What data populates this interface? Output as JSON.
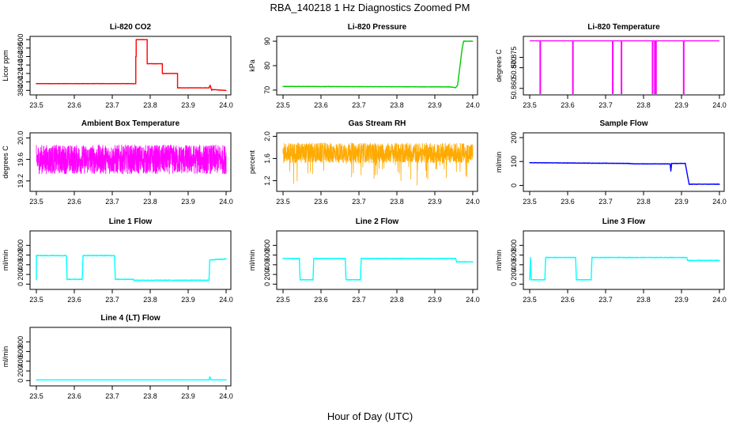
{
  "figure": {
    "title": "RBA_140218  1 Hz Diagnostics Zoomed PM",
    "xlabel": "Hour of Day (UTC)"
  },
  "chart_data": [
    {
      "type": "line",
      "title": "Li-820 CO2",
      "ylabel": "Licor ppm",
      "xlim": [
        23.5,
        24.0
      ],
      "xticks": [
        "23.5",
        "23.6",
        "23.7",
        "23.8",
        "23.9",
        "24.0"
      ],
      "ylim": [
        375,
        502
      ],
      "yticks": [
        "380",
        "400",
        "420",
        "440",
        "460",
        "480",
        "500"
      ],
      "series": [
        {
          "color": "#ff0000",
          "noise": 0.6,
          "x": [
            23.5,
            23.762,
            23.762,
            23.763,
            23.763,
            23.792,
            23.792,
            23.832,
            23.832,
            23.872,
            23.872,
            23.955,
            23.958,
            23.962,
            23.962,
            24.0
          ],
          "y": [
            396,
            396,
            460,
            460,
            500,
            500,
            443,
            443,
            420,
            420,
            386,
            386,
            392,
            380,
            382,
            380
          ]
        }
      ]
    },
    {
      "type": "line",
      "title": "Li-820 Pressure",
      "ylabel": "kPa",
      "xlim": [
        23.5,
        24.0
      ],
      "xticks": [
        "23.5",
        "23.6",
        "23.7",
        "23.8",
        "23.9",
        "24.0"
      ],
      "ylim": [
        69,
        91
      ],
      "yticks": [
        "70",
        "80",
        "90"
      ],
      "series": [
        {
          "color": "#00cc00",
          "noise": 0.1,
          "x": [
            23.5,
            23.94,
            23.955,
            23.96,
            23.972,
            23.976,
            24.0
          ],
          "y": [
            71.5,
            71.3,
            71,
            72,
            87,
            90,
            90
          ]
        }
      ]
    },
    {
      "type": "line",
      "title": "Li-820 Temperature",
      "ylabel": "degrees C",
      "xlim": [
        23.5,
        24.0
      ],
      "xticks": [
        "23.5",
        "23.6",
        "23.7",
        "23.8",
        "23.9",
        "24.0"
      ],
      "ylim": [
        50.858,
        50.884
      ],
      "yticks": [
        "50.860",
        "50.870",
        "50.875"
      ],
      "series": [
        {
          "color": "#ff00ff",
          "noise": 0,
          "spikes_down": [
            23.527,
            23.613,
            23.718,
            23.741,
            23.823,
            23.829,
            23.832,
            23.905
          ],
          "x": [
            23.5,
            24.0
          ],
          "y": [
            50.883,
            50.883
          ]
        }
      ]
    },
    {
      "type": "line",
      "title": "Ambient Box Temperature",
      "ylabel": "degrees C",
      "xlim": [
        23.5,
        24.0
      ],
      "xticks": [
        "23.5",
        "23.6",
        "23.7",
        "23.8",
        "23.9",
        "24.0"
      ],
      "ylim": [
        19.05,
        20.05
      ],
      "yticks": [
        "19.2",
        "19.6",
        "20.0"
      ],
      "series": [
        {
          "color": "#ff00ff",
          "noise": 0.27,
          "dense": true,
          "x": [
            23.5,
            24.0
          ],
          "y": [
            19.6,
            19.6
          ]
        }
      ]
    },
    {
      "type": "line",
      "title": "Gas Stream RH",
      "ylabel": "percent",
      "xlim": [
        23.5,
        24.0
      ],
      "xticks": [
        "23.5",
        "23.6",
        "23.7",
        "23.8",
        "23.9",
        "24.0"
      ],
      "ylim": [
        1.05,
        2.02
      ],
      "yticks": [
        "1.2",
        "1.6",
        "2.0"
      ],
      "series": [
        {
          "color": "#ffaa00",
          "noise": 0.18,
          "dense": true,
          "spiky": true,
          "x": [
            23.5,
            24.0
          ],
          "y": [
            1.7,
            1.7
          ]
        }
      ]
    },
    {
      "type": "line",
      "title": "Sample Flow",
      "ylabel": "ml/min",
      "xlim": [
        23.5,
        24.0
      ],
      "xticks": [
        "23.5",
        "23.6",
        "23.7",
        "23.8",
        "23.9",
        "24.0"
      ],
      "ylim": [
        -15,
        210
      ],
      "yticks": [
        "0",
        "100",
        "200"
      ],
      "series": [
        {
          "color": "#0000ff",
          "noise": 1.5,
          "x": [
            23.5,
            23.76,
            23.775,
            23.87,
            23.872,
            23.874,
            23.91,
            23.92,
            24.0
          ],
          "y": [
            95,
            92,
            90,
            90,
            60,
            92,
            92,
            5,
            5
          ]
        }
      ]
    },
    {
      "type": "line",
      "title": "Line 1 Flow",
      "ylabel": "ml/min",
      "xlim": [
        23.5,
        24.0
      ],
      "xticks": [
        "23.5",
        "23.6",
        "23.7",
        "23.8",
        "23.9",
        "24.0"
      ],
      "ylim": [
        -60,
        1050
      ],
      "yticks": [
        "0",
        "200",
        "400",
        "600",
        "800"
      ],
      "series": [
        {
          "color": "#00ffff",
          "noise": 12,
          "x": [
            23.5,
            23.5,
            23.502,
            23.579,
            23.581,
            23.621,
            23.623,
            23.706,
            23.708,
            23.755,
            23.757,
            23.955,
            23.957,
            24.0
          ],
          "y": [
            100,
            590,
            590,
            590,
            100,
            100,
            590,
            590,
            100,
            100,
            80,
            80,
            500,
            520
          ]
        }
      ]
    },
    {
      "type": "line",
      "title": "Line 2 Flow",
      "ylabel": "ml/min",
      "xlim": [
        23.5,
        24.0
      ],
      "xticks": [
        "23.5",
        "23.6",
        "23.7",
        "23.8",
        "23.9",
        "24.0"
      ],
      "ylim": [
        -60,
        1050
      ],
      "yticks": [
        "0",
        "200",
        "400",
        "600",
        "800"
      ],
      "series": [
        {
          "color": "#00ffff",
          "noise": 10,
          "x": [
            23.5,
            23.543,
            23.545,
            23.579,
            23.581,
            23.664,
            23.666,
            23.704,
            23.706,
            23.955,
            23.957,
            24.0
          ],
          "y": [
            530,
            530,
            90,
            90,
            530,
            530,
            90,
            90,
            530,
            530,
            460,
            460
          ]
        }
      ]
    },
    {
      "type": "line",
      "title": "Line 3 Flow",
      "ylabel": "ml/min",
      "xlim": [
        23.5,
        24.0
      ],
      "xticks": [
        "23.5",
        "23.6",
        "23.7",
        "23.8",
        "23.9",
        "24.0"
      ],
      "ylim": [
        -60,
        1050
      ],
      "yticks": [
        "0",
        "200",
        "400",
        "600",
        "800"
      ],
      "series": [
        {
          "color": "#00ffff",
          "noise": 10,
          "x": [
            23.5,
            23.502,
            23.504,
            23.54,
            23.542,
            23.621,
            23.623,
            23.662,
            23.664,
            23.914,
            23.916,
            24.0
          ],
          "y": [
            90,
            550,
            90,
            90,
            550,
            550,
            90,
            90,
            550,
            550,
            490,
            490
          ]
        }
      ]
    },
    {
      "type": "line",
      "title": "Line 4 (LT) Flow",
      "ylabel": "ml/min",
      "xlim": [
        23.5,
        24.0
      ],
      "xticks": [
        "23.5",
        "23.6",
        "23.7",
        "23.8",
        "23.9",
        "24.0"
      ],
      "ylim": [
        -60,
        1050
      ],
      "yticks": [
        "0",
        "200",
        "400",
        "600",
        "800"
      ],
      "series": [
        {
          "color": "#00ffff",
          "noise": 2,
          "x": [
            23.5,
            23.955,
            23.957,
            23.96,
            24.0
          ],
          "y": [
            15,
            15,
            80,
            15,
            15
          ]
        }
      ]
    }
  ]
}
